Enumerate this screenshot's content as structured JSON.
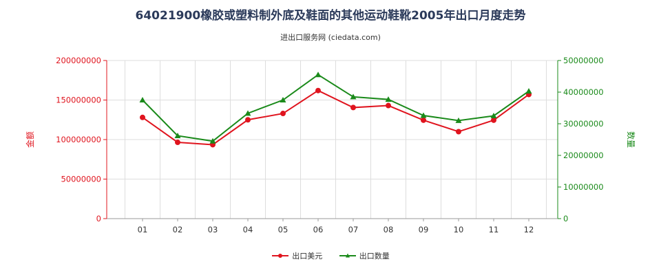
{
  "title": "64021900橡胶或塑料制外底及鞋面的其他运动鞋靴2005年出口月度走势",
  "subtitle": "进出口服务网 (ciedata.com)",
  "colors": {
    "left_axis": "#e0141e",
    "right_axis": "#1a8a1a",
    "grid": "#dddddd"
  },
  "chart_data": {
    "type": "line",
    "categories": [
      "01",
      "02",
      "03",
      "04",
      "05",
      "06",
      "07",
      "08",
      "09",
      "10",
      "11",
      "12"
    ],
    "series": [
      {
        "name": "出口美元",
        "axis": "left",
        "color": "#e0141e",
        "values": [
          128000000,
          96500000,
          93500000,
          125000000,
          133000000,
          162000000,
          140500000,
          143000000,
          124500000,
          110000000,
          124500000,
          157000000
        ]
      },
      {
        "name": "出口数量",
        "axis": "right",
        "color": "#1a8a1a",
        "values": [
          37500000,
          26200000,
          24500000,
          33300000,
          37500000,
          45500000,
          38500000,
          37700000,
          32600000,
          31000000,
          32500000,
          40300000
        ]
      }
    ],
    "left_axis": {
      "label": "金额",
      "min": 0,
      "max": 200000000,
      "ticks": [
        "0",
        "50000000",
        "100000000",
        "150000000",
        "200000000"
      ]
    },
    "right_axis": {
      "label": "数量",
      "min": 0,
      "max": 50000000,
      "ticks": [
        "0",
        "10000000",
        "20000000",
        "30000000",
        "40000000",
        "50000000"
      ]
    },
    "grid": true,
    "legend_position": "bottom"
  }
}
